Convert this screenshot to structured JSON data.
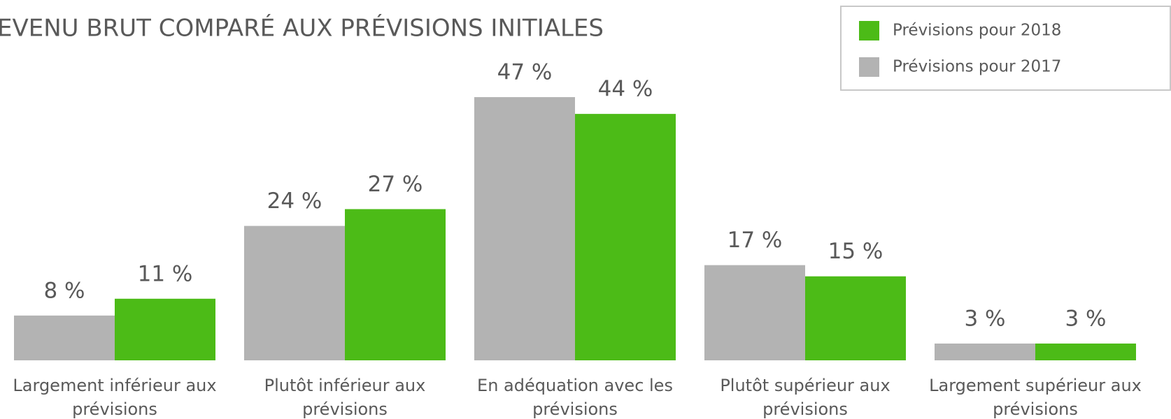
{
  "chart_data": {
    "type": "bar",
    "title": "EVENU BRUT COMPARÉ AUX PRÉVISIONS INITIALES",
    "categories": [
      "Largement inférieur aux prévisions",
      "Plutôt inférieur aux prévisions",
      "En adéquation avec les prévisions",
      "Plutôt supérieur aux prévisions",
      "Largement supérieur aux prévisions"
    ],
    "series": [
      {
        "name": "Prévisions pour 2018",
        "color": "#4cbb17",
        "values": [
          11,
          27,
          44,
          15,
          3
        ],
        "value_labels": [
          "11 %",
          "27 %",
          "44 %",
          "15 %",
          "3 %"
        ]
      },
      {
        "name": "Prévisions pour 2017",
        "color": "#b3b3b3",
        "values": [
          8,
          24,
          47,
          17,
          3
        ],
        "value_labels": [
          "8 %",
          "24 %",
          "47 %",
          "17 %",
          "3 %"
        ]
      }
    ],
    "ylim": [
      0,
      50
    ],
    "legend": "top-right"
  }
}
